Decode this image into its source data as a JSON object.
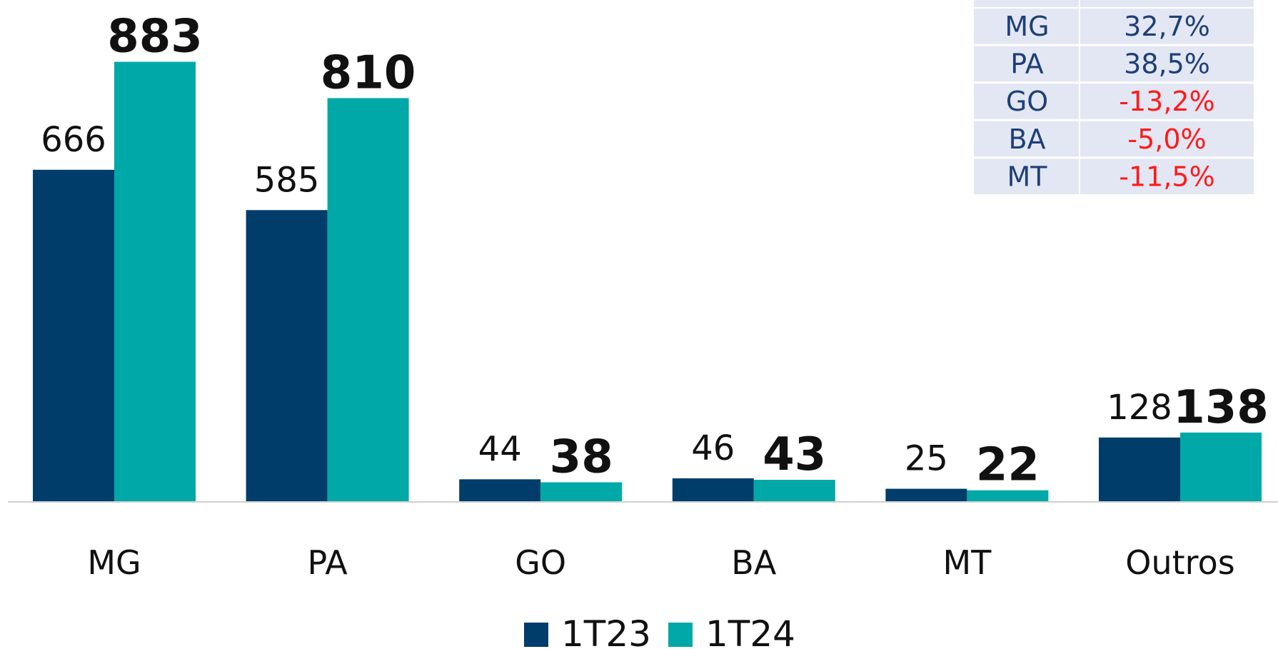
{
  "chart_data": {
    "type": "bar",
    "categories": [
      "MG",
      "PA",
      "GO",
      "BA",
      "MT",
      "Outros"
    ],
    "series": [
      {
        "name": "1T23",
        "color": "#003d6b",
        "values": [
          666,
          585,
          44,
          46,
          25,
          128
        ]
      },
      {
        "name": "1T24",
        "color": "#00a8a8",
        "values": [
          883,
          810,
          38,
          43,
          22,
          138
        ]
      }
    ],
    "legend": "bottom"
  },
  "table": {
    "rows": [
      [
        "MG",
        "32,7%"
      ],
      [
        "PA",
        "38,5%"
      ],
      [
        "GO",
        "-13,2%"
      ],
      [
        "BA",
        "-5,0%"
      ],
      [
        "MT",
        "-11,5%"
      ]
    ]
  }
}
